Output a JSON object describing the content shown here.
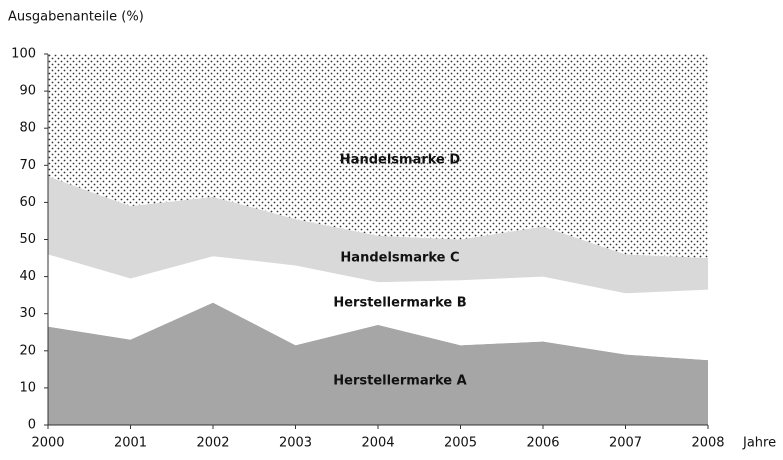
{
  "chart_data": {
    "type": "stacked_area",
    "y_axis_label": "Ausgabenanteile (%)",
    "x_axis_label": "Jahre",
    "x": [
      2000,
      2001,
      2002,
      2003,
      2004,
      2005,
      2006,
      2007,
      2008
    ],
    "series": [
      {
        "name": "Herstellermarke A",
        "color": "#a6a6a6",
        "values": [
          26.5,
          23,
          33,
          21.5,
          27,
          21.5,
          22.5,
          19,
          17.5
        ]
      },
      {
        "name": "Herstellermarke B",
        "color": "#ffffff",
        "values": [
          19.5,
          16.5,
          12.5,
          21.5,
          11.5,
          17.5,
          17.5,
          16.5,
          19
        ]
      },
      {
        "name": "Handelsmarke C",
        "color": "#d9d9d9",
        "values": [
          21,
          19.5,
          16,
          12.5,
          12.5,
          11,
          13.5,
          10.5,
          8.5
        ]
      },
      {
        "name": "Handelsmarke D",
        "color": "#000000",
        "pattern": "dots",
        "values": [
          33,
          41,
          38.5,
          44.5,
          49,
          50,
          46.5,
          54,
          55
        ]
      }
    ],
    "xlim": [
      2000,
      2008
    ],
    "xticks": [
      2000,
      2001,
      2002,
      2003,
      2004,
      2005,
      2006,
      2007,
      2008
    ],
    "ylim": [
      0,
      100
    ],
    "yticks": [
      0,
      10,
      20,
      30,
      40,
      50,
      60,
      70,
      80,
      90,
      100
    ]
  }
}
